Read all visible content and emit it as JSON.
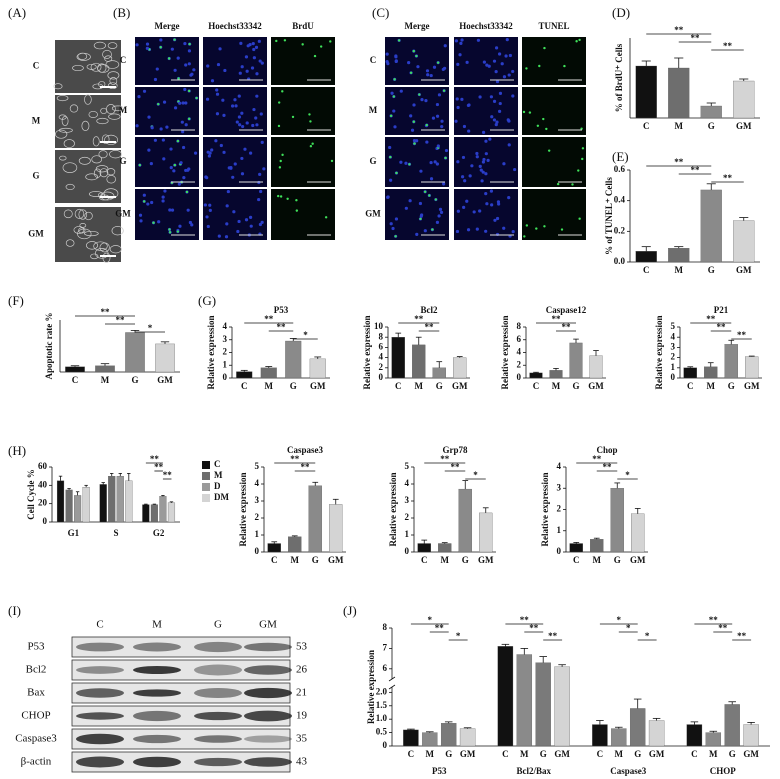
{
  "panels": {
    "A": {
      "label": "(A)",
      "rows": [
        "C",
        "M",
        "G",
        "GM"
      ]
    },
    "B": {
      "label": "(B)",
      "columns": [
        "Merge",
        "Hoechst33342",
        "BrdU"
      ],
      "rows": [
        "C",
        "M",
        "G",
        "GM"
      ]
    },
    "C": {
      "label": "(C)",
      "columns": [
        "Merge",
        "Hoechst33342",
        "TUNEL"
      ],
      "rows": [
        "C",
        "M",
        "G",
        "GM"
      ]
    },
    "I": {
      "label": "(I)",
      "lanes": [
        "C",
        "M",
        "G",
        "GM"
      ],
      "proteins": [
        "P53",
        "Bcl2",
        "Bax",
        "CHOP",
        "Caspase3",
        "β-actin"
      ],
      "kda": [
        53,
        26,
        21,
        19,
        35,
        43
      ]
    }
  },
  "chart_data": [
    {
      "type": "bar",
      "panel": "(D)",
      "ylabel": "% of BrdU⁺ Cells",
      "categories": [
        "C",
        "M",
        "G",
        "GM"
      ],
      "values": [
        26,
        25,
        6,
        18.5
      ],
      "errors": [
        2.5,
        5,
        1.5,
        1
      ],
      "colors": [
        "#111111",
        "#6e6e6e",
        "#8a8a8a",
        "#d4d4d4"
      ],
      "ylim": [
        0,
        40
      ],
      "brackets": [
        {
          "label": "**",
          "from": "C",
          "to": "G"
        },
        {
          "label": "**",
          "from": "M",
          "to": "G"
        },
        {
          "label": "**",
          "from": "G",
          "to": "GM"
        }
      ]
    },
    {
      "type": "bar",
      "panel": "(E)",
      "ylabel": "% of TUNEL⁺ Cells",
      "categories": [
        "C",
        "M",
        "G",
        "GM"
      ],
      "values": [
        0.07,
        0.09,
        0.47,
        0.27
      ],
      "errors": [
        0.03,
        0.01,
        0.04,
        0.02
      ],
      "colors": [
        "#111111",
        "#6e6e6e",
        "#8a8a8a",
        "#d4d4d4"
      ],
      "ylim": [
        0,
        0.6
      ],
      "yticks": [
        {
          "value": 0,
          "label": "0.0"
        },
        0.2,
        0.4,
        0.6
      ],
      "brackets": [
        {
          "label": "**",
          "from": "C",
          "to": "G"
        },
        {
          "label": "**",
          "from": "M",
          "to": "G"
        },
        {
          "label": "**",
          "from": "G",
          "to": "GM"
        }
      ]
    },
    {
      "type": "bar",
      "panel": "(F)",
      "ylabel": "Apoptotic rate %",
      "categories": [
        "C",
        "M",
        "G",
        "GM"
      ],
      "values": [
        5,
        6,
        38,
        27
      ],
      "errors": [
        1,
        2,
        2,
        2
      ],
      "colors": [
        "#111111",
        "#6e6e6e",
        "#8a8a8a",
        "#d4d4d4"
      ],
      "ylim": [
        0,
        50
      ],
      "brackets": [
        {
          "label": "**",
          "from": "C",
          "to": "G"
        },
        {
          "label": "**",
          "from": "M",
          "to": "G"
        },
        {
          "label": "*",
          "from": "G",
          "to": "GM"
        }
      ]
    },
    {
      "type": "bar",
      "panel": "(G)",
      "title": "P53",
      "ylabel": "Relative expression",
      "categories": [
        "C",
        "M",
        "G",
        "GM"
      ],
      "values": [
        0.5,
        0.8,
        2.9,
        1.5
      ],
      "errors": [
        0.1,
        0.1,
        0.2,
        0.15
      ],
      "colors": [
        "#111111",
        "#6e6e6e",
        "#8a8a8a",
        "#d4d4d4"
      ],
      "ylim": [
        0,
        4
      ],
      "yticks": [
        0,
        1,
        2,
        3,
        4
      ],
      "brackets": [
        {
          "label": "**",
          "from": "C",
          "to": "G"
        },
        {
          "label": "**",
          "from": "M",
          "to": "G"
        },
        {
          "label": "*",
          "from": "G",
          "to": "GM"
        }
      ]
    },
    {
      "type": "bar",
      "title": "Bcl2",
      "ylabel": "Relative expression",
      "categories": [
        "C",
        "M",
        "G",
        "GM"
      ],
      "values": [
        8,
        6.5,
        2,
        4
      ],
      "errors": [
        0.8,
        1.5,
        1.2,
        0.2
      ],
      "colors": [
        "#111111",
        "#6e6e6e",
        "#8a8a8a",
        "#d4d4d4"
      ],
      "ylim": [
        0,
        10
      ],
      "yticks": [
        0,
        2,
        4,
        6,
        8,
        10
      ],
      "brackets": [
        {
          "label": "**",
          "from": "C",
          "to": "G"
        },
        {
          "label": "**",
          "from": "M",
          "to": "G"
        }
      ]
    },
    {
      "type": "bar",
      "title": "Caspase12",
      "ylabel": "Relative expression",
      "categories": [
        "C",
        "M",
        "G",
        "GM"
      ],
      "values": [
        0.8,
        1.2,
        5.5,
        3.5
      ],
      "errors": [
        0.1,
        0.3,
        0.6,
        0.8
      ],
      "colors": [
        "#111111",
        "#6e6e6e",
        "#8a8a8a",
        "#d4d4d4"
      ],
      "ylim": [
        0,
        8
      ],
      "yticks": [
        0,
        2,
        4,
        6,
        8
      ],
      "brackets": [
        {
          "label": "**",
          "from": "C",
          "to": "G"
        },
        {
          "label": "**",
          "from": "M",
          "to": "G"
        }
      ]
    },
    {
      "type": "bar",
      "title": "P21",
      "ylabel": "Relative expression",
      "categories": [
        "C",
        "M",
        "G",
        "GM"
      ],
      "values": [
        1,
        1.1,
        3.3,
        2.1
      ],
      "errors": [
        0.1,
        0.4,
        0.4,
        0.05
      ],
      "colors": [
        "#111111",
        "#6e6e6e",
        "#8a8a8a",
        "#d4d4d4"
      ],
      "ylim": [
        0,
        5
      ],
      "yticks": [
        0,
        1,
        2,
        3,
        4,
        5
      ],
      "brackets": [
        {
          "label": "**",
          "from": "C",
          "to": "G"
        },
        {
          "label": "**",
          "from": "M",
          "to": "G"
        },
        {
          "label": "**",
          "from": "G",
          "to": "GM"
        }
      ]
    },
    {
      "type": "grouped_bar",
      "panel": "(H)",
      "ylabel": "Cell Cycle %",
      "categories": [
        "G1",
        "S",
        "G2"
      ],
      "ylim": [
        0,
        60
      ],
      "yticks": [
        0,
        20,
        40,
        60
      ],
      "legend": "right",
      "series": [
        {
          "name": "C",
          "color": "#111111",
          "values": [
            45,
            41,
            19
          ],
          "errors": [
            5,
            2,
            0.5
          ]
        },
        {
          "name": "M",
          "color": "#6e6e6e",
          "values": [
            35,
            50,
            19
          ],
          "errors": [
            1.5,
            3,
            0.5
          ]
        },
        {
          "name": "D",
          "color": "#9a9a9a",
          "values": [
            29,
            50,
            28
          ],
          "errors": [
            4,
            3,
            1
          ]
        },
        {
          "name": "DM",
          "color": "#d4d4d4",
          "values": [
            38,
            45,
            21
          ],
          "errors": [
            2,
            8,
            1
          ]
        }
      ],
      "brackets": [
        {
          "label": "**",
          "group": "G2",
          "from": "C",
          "to": "D"
        },
        {
          "label": "**",
          "group": "G2",
          "from": "M",
          "to": "D"
        },
        {
          "label": "**",
          "group": "G2",
          "from": "D",
          "to": "DM"
        }
      ]
    },
    {
      "type": "bar",
      "title": "Caspase3",
      "ylabel": "Relative expression",
      "categories": [
        "C",
        "M",
        "G",
        "GM"
      ],
      "values": [
        0.5,
        0.9,
        3.9,
        2.8
      ],
      "errors": [
        0.1,
        0.05,
        0.2,
        0.3
      ],
      "colors": [
        "#111111",
        "#6e6e6e",
        "#8a8a8a",
        "#d4d4d4"
      ],
      "ylim": [
        0,
        5
      ],
      "yticks": [
        0,
        1,
        2,
        3,
        4,
        5
      ],
      "brackets": [
        {
          "label": "**",
          "from": "C",
          "to": "G"
        },
        {
          "label": "**",
          "from": "M",
          "to": "G"
        }
      ]
    },
    {
      "type": "bar",
      "title": "Grp78",
      "ylabel": "Relative expression",
      "categories": [
        "C",
        "M",
        "G",
        "GM"
      ],
      "values": [
        0.5,
        0.5,
        3.7,
        2.3
      ],
      "errors": [
        0.2,
        0.05,
        0.5,
        0.3
      ],
      "colors": [
        "#111111",
        "#6e6e6e",
        "#8a8a8a",
        "#d4d4d4"
      ],
      "ylim": [
        0,
        5
      ],
      "yticks": [
        0,
        1,
        2,
        3,
        4,
        5
      ],
      "brackets": [
        {
          "label": "**",
          "from": "C",
          "to": "G"
        },
        {
          "label": "**",
          "from": "M",
          "to": "G"
        },
        {
          "label": "*",
          "from": "G",
          "to": "GM"
        }
      ]
    },
    {
      "type": "bar",
      "title": "Chop",
      "ylabel": "Relative expression",
      "categories": [
        "C",
        "M",
        "G",
        "GM"
      ],
      "values": [
        0.4,
        0.6,
        3.0,
        1.8
      ],
      "errors": [
        0.05,
        0.05,
        0.25,
        0.25
      ],
      "colors": [
        "#111111",
        "#6e6e6e",
        "#8a8a8a",
        "#d4d4d4"
      ],
      "ylim": [
        0,
        4
      ],
      "yticks": [
        0,
        1,
        2,
        3,
        4
      ],
      "brackets": [
        {
          "label": "**",
          "from": "C",
          "to": "G"
        },
        {
          "label": "**",
          "from": "M",
          "to": "G"
        },
        {
          "label": "*",
          "from": "G",
          "to": "GM"
        }
      ]
    },
    {
      "type": "grouped_bar",
      "panel": "(J)",
      "ylabel": "Relative expression",
      "categories": [
        "P53",
        "Bcl2/Bax",
        "Caspase3",
        "CHOP"
      ],
      "ylim": [
        0,
        8
      ],
      "ybreak": [
        2.2,
        5.5
      ],
      "yticks": [
        0,
        0.5,
        {
          "value": 1,
          "label": "1.0"
        },
        1.5,
        {
          "value": 2,
          "label": "2.0"
        },
        6,
        7,
        8
      ],
      "bar_labels": true,
      "series": [
        {
          "name": "C",
          "color": "#111111",
          "values": [
            0.6,
            7.1,
            0.8,
            0.8
          ],
          "errors": [
            0.03,
            0.1,
            0.15,
            0.1
          ]
        },
        {
          "name": "M",
          "color": "#8a8a8a",
          "values": [
            0.5,
            6.7,
            0.65,
            0.5
          ],
          "errors": [
            0.03,
            0.3,
            0.05,
            0.05
          ]
        },
        {
          "name": "G",
          "color": "#7a7a7a",
          "values": [
            0.85,
            6.3,
            1.4,
            1.55
          ],
          "errors": [
            0.05,
            0.3,
            0.35,
            0.1
          ]
        },
        {
          "name": "GM",
          "color": "#d4d4d4",
          "values": [
            0.65,
            6.1,
            0.95,
            0.8
          ],
          "errors": [
            0.03,
            0.1,
            0.08,
            0.08
          ]
        }
      ],
      "brackets": [
        {
          "label": "*",
          "group": "P53",
          "from": "C",
          "to": "G"
        },
        {
          "label": "**",
          "group": "P53",
          "from": "M",
          "to": "G"
        },
        {
          "label": "*",
          "group": "P53",
          "from": "G",
          "to": "GM"
        },
        {
          "label": "**",
          "group": "Bcl2/Bax",
          "from": "C",
          "to": "G"
        },
        {
          "label": "**",
          "group": "Bcl2/Bax",
          "from": "M",
          "to": "G"
        },
        {
          "label": "**",
          "group": "Bcl2/Bax",
          "from": "G",
          "to": "GM"
        },
        {
          "label": "*",
          "group": "Caspase3",
          "from": "C",
          "to": "G"
        },
        {
          "label": "*",
          "group": "Caspase3",
          "from": "M",
          "to": "G"
        },
        {
          "label": "*",
          "group": "Caspase3",
          "from": "G",
          "to": "GM"
        },
        {
          "label": "**",
          "group": "CHOP",
          "from": "C",
          "to": "G"
        },
        {
          "label": "**",
          "group": "CHOP",
          "from": "M",
          "to": "G"
        },
        {
          "label": "**",
          "group": "CHOP",
          "from": "G",
          "to": "GM"
        }
      ]
    }
  ]
}
